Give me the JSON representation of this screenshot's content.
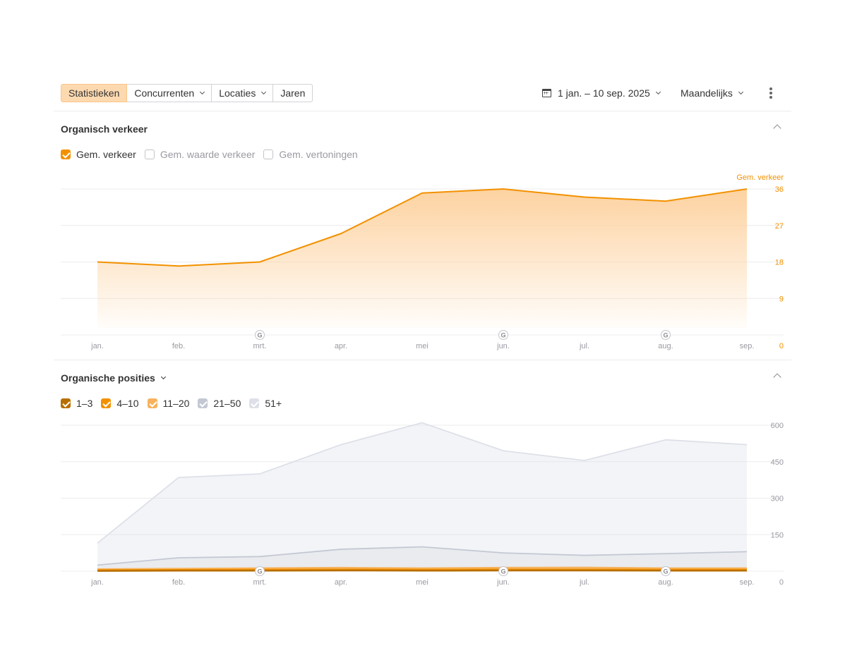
{
  "toolbar": {
    "tabs": [
      {
        "label": "Statistieken",
        "active": true,
        "dropdown": false
      },
      {
        "label": "Concurrenten",
        "active": false,
        "dropdown": true
      },
      {
        "label": "Locaties",
        "active": false,
        "dropdown": true
      },
      {
        "label": "Jaren",
        "active": false,
        "dropdown": false
      }
    ],
    "date_range": "1 jan. – 10 sep. 2025",
    "period": "Maandelijks",
    "more_icon": "more-vertical-icon",
    "calendar_icon": "calendar-icon"
  },
  "traffic_section": {
    "title": "Organisch verkeer",
    "legend": [
      {
        "label": "Gem. verkeer",
        "checked": true,
        "color": "#f29100"
      },
      {
        "label": "Gem. waarde verkeer",
        "checked": false,
        "color": ""
      },
      {
        "label": "Gem. vertoningen",
        "checked": false,
        "color": ""
      }
    ]
  },
  "positions_section": {
    "title": "Organische posities",
    "legend": [
      {
        "label": "1–3",
        "checked": true,
        "color": "#b86e00"
      },
      {
        "label": "4–10",
        "checked": true,
        "color": "#f29100"
      },
      {
        "label": "11–20",
        "checked": true,
        "color": "#f7b25c"
      },
      {
        "label": "21–50",
        "checked": true,
        "color": "#c3c8d3"
      },
      {
        "label": "51+",
        "checked": true,
        "color": "#dde0e8"
      }
    ]
  },
  "chart_data": [
    {
      "type": "area",
      "categories": [
        "jan.",
        "feb.",
        "mrt.",
        "apr.",
        "mei",
        "jun.",
        "jul.",
        "aug.",
        "sep."
      ],
      "series": [
        {
          "name": "Gem. verkeer",
          "color": "#f29100",
          "values": [
            18,
            17,
            18,
            25,
            35,
            36,
            34,
            33,
            36
          ]
        }
      ],
      "y_axis_label": "Gem. verkeer",
      "y_ticks": [
        0,
        9,
        18,
        27,
        36
      ],
      "ylim": [
        0,
        36
      ],
      "google_update_markers": [
        "mrt.",
        "jun.",
        "aug."
      ],
      "grid": true
    },
    {
      "type": "area",
      "categories": [
        "jan.",
        "feb.",
        "mrt.",
        "apr.",
        "mei",
        "jun.",
        "jul.",
        "aug.",
        "sep."
      ],
      "series": [
        {
          "name": "51+",
          "color": "#dde0e8",
          "values": [
            115,
            385,
            400,
            520,
            610,
            495,
            455,
            540,
            520
          ]
        },
        {
          "name": "21–50",
          "color": "#c3c8d3",
          "values": [
            25,
            55,
            60,
            90,
            100,
            75,
            65,
            72,
            80
          ]
        },
        {
          "name": "11–20",
          "color": "#f7b25c",
          "values": [
            8,
            10,
            12,
            14,
            12,
            14,
            15,
            12,
            12
          ]
        },
        {
          "name": "4–10",
          "color": "#f29100",
          "values": [
            4,
            5,
            6,
            7,
            6,
            7,
            7,
            6,
            6
          ]
        },
        {
          "name": "1–3",
          "color": "#b86e00",
          "values": [
            1,
            2,
            2,
            3,
            2,
            3,
            3,
            2,
            2
          ]
        }
      ],
      "y_ticks": [
        0,
        150,
        300,
        450,
        600
      ],
      "ylim": [
        0,
        600
      ],
      "google_update_markers": [
        "mrt.",
        "jun.",
        "aug."
      ],
      "grid": true
    }
  ]
}
